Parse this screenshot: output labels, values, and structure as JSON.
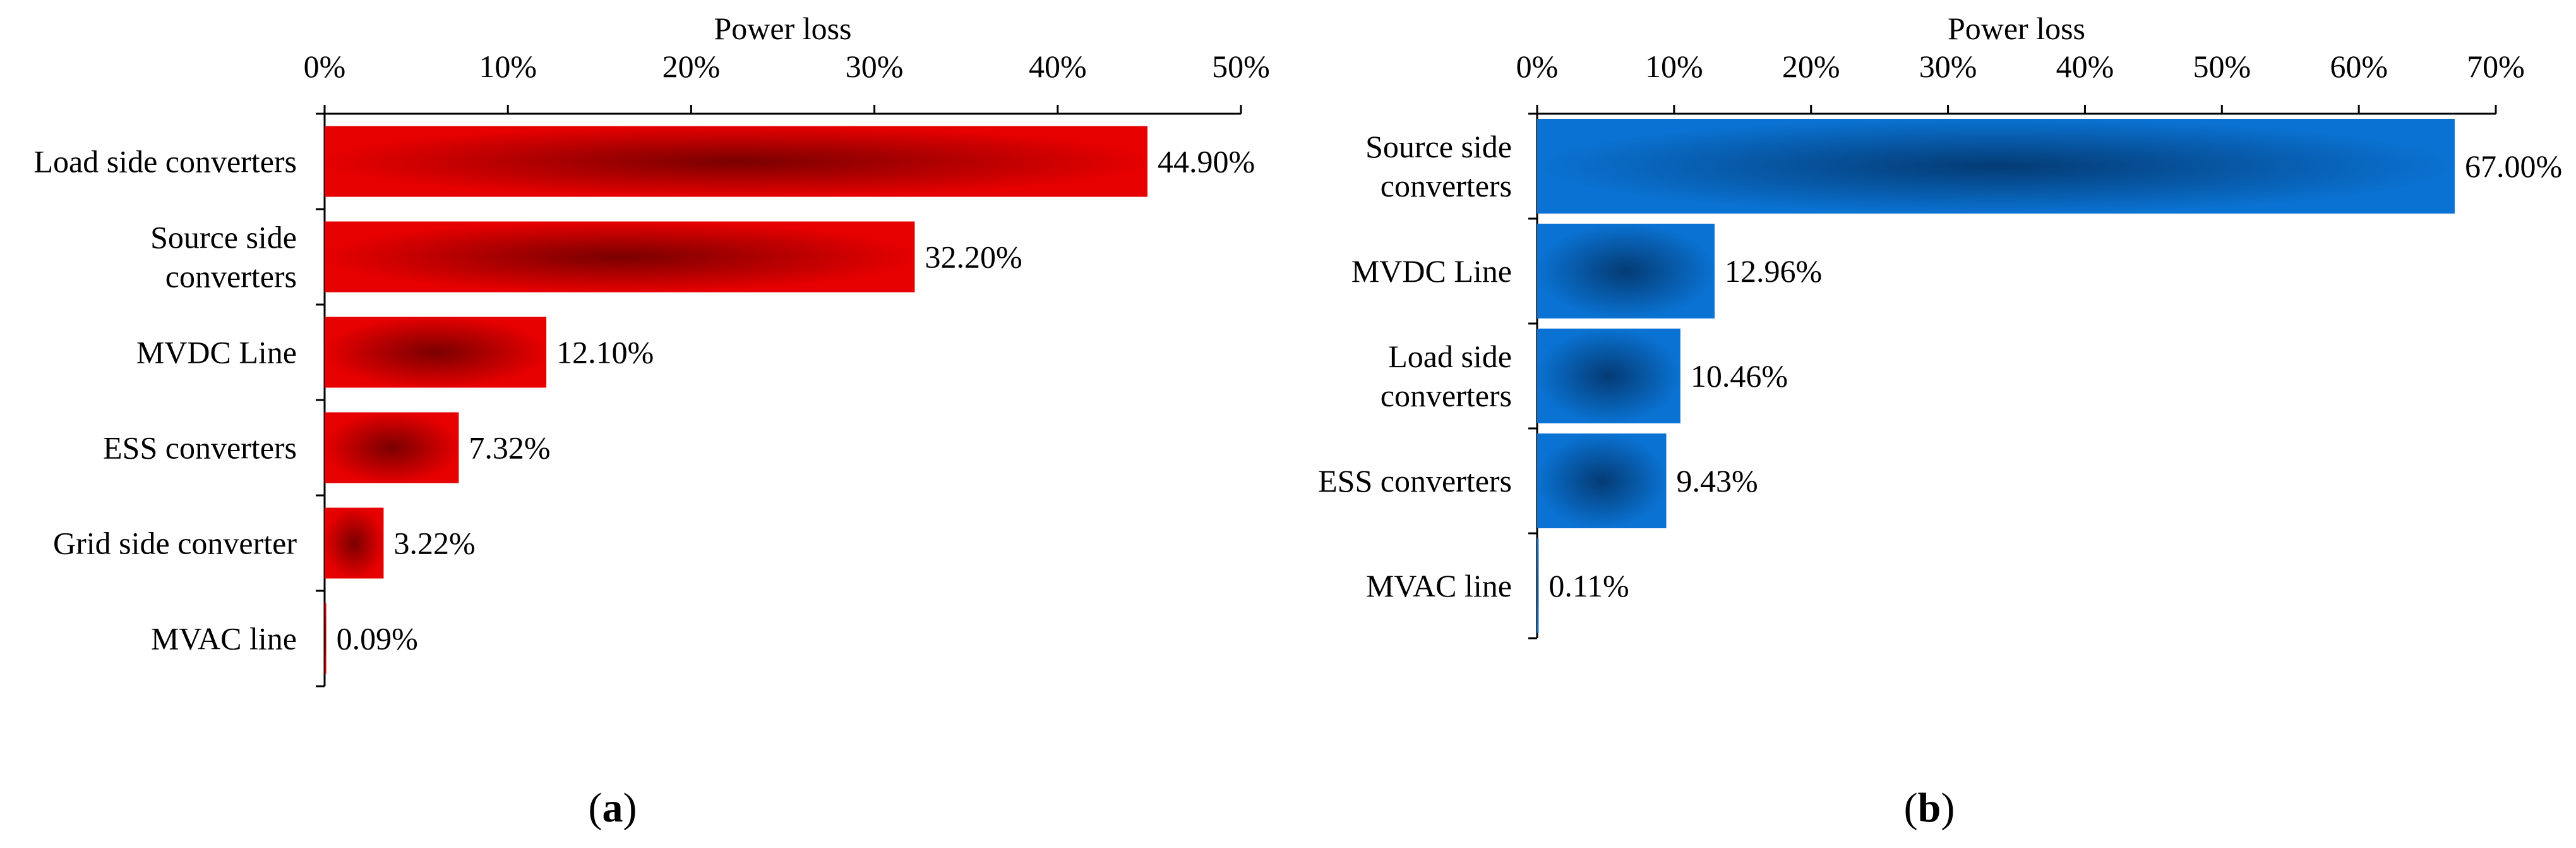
{
  "figure": {
    "panel_a_label": {
      "open": "(",
      "letter": "a",
      "close": ")"
    },
    "panel_b_label": {
      "open": "(",
      "letter": "b",
      "close": ")"
    }
  },
  "chart_data": [
    {
      "type": "bar",
      "orientation": "horizontal",
      "title": "Power loss",
      "xlabel": "Power loss",
      "ylabel": "",
      "xlim": [
        0,
        50
      ],
      "xticks": [
        0,
        10,
        20,
        30,
        40,
        50
      ],
      "tick_labels": [
        "0%",
        "10%",
        "20%",
        "30%",
        "40%",
        "50%"
      ],
      "axis_position": "top",
      "grid": false,
      "colors": {
        "edge": "#e60000",
        "center": "#7a0000"
      },
      "categories": [
        [
          "Load side converters"
        ],
        [
          "Source side",
          "converters"
        ],
        [
          "MVDC Line"
        ],
        [
          "ESS converters"
        ],
        [
          "Grid side converter"
        ],
        [
          "MVAC line"
        ]
      ],
      "values": [
        44.9,
        32.2,
        12.1,
        7.32,
        3.22,
        0.09
      ],
      "value_labels": [
        "44.90%",
        "32.20%",
        "12.10%",
        "7.32%",
        "3.22%",
        "0.09%"
      ]
    },
    {
      "type": "bar",
      "orientation": "horizontal",
      "title": "Power loss",
      "xlabel": "Power loss",
      "ylabel": "",
      "xlim": [
        0,
        70
      ],
      "xticks": [
        0,
        10,
        20,
        30,
        40,
        50,
        60,
        70
      ],
      "tick_labels": [
        "0%",
        "10%",
        "20%",
        "30%",
        "40%",
        "50%",
        "60%",
        "70%"
      ],
      "axis_position": "top",
      "grid": false,
      "colors": {
        "edge": "#0a72d2",
        "center": "#043b74"
      },
      "categories": [
        [
          "Source side",
          "converters"
        ],
        [
          "MVDC Line"
        ],
        [
          "Load side",
          "converters"
        ],
        [
          "ESS converters"
        ],
        [
          "MVAC line"
        ]
      ],
      "values": [
        67.0,
        12.96,
        10.46,
        9.43,
        0.11
      ],
      "value_labels": [
        "67.00%",
        "12.96%",
        "10.46%",
        "9.43%",
        "0.11%"
      ]
    }
  ]
}
